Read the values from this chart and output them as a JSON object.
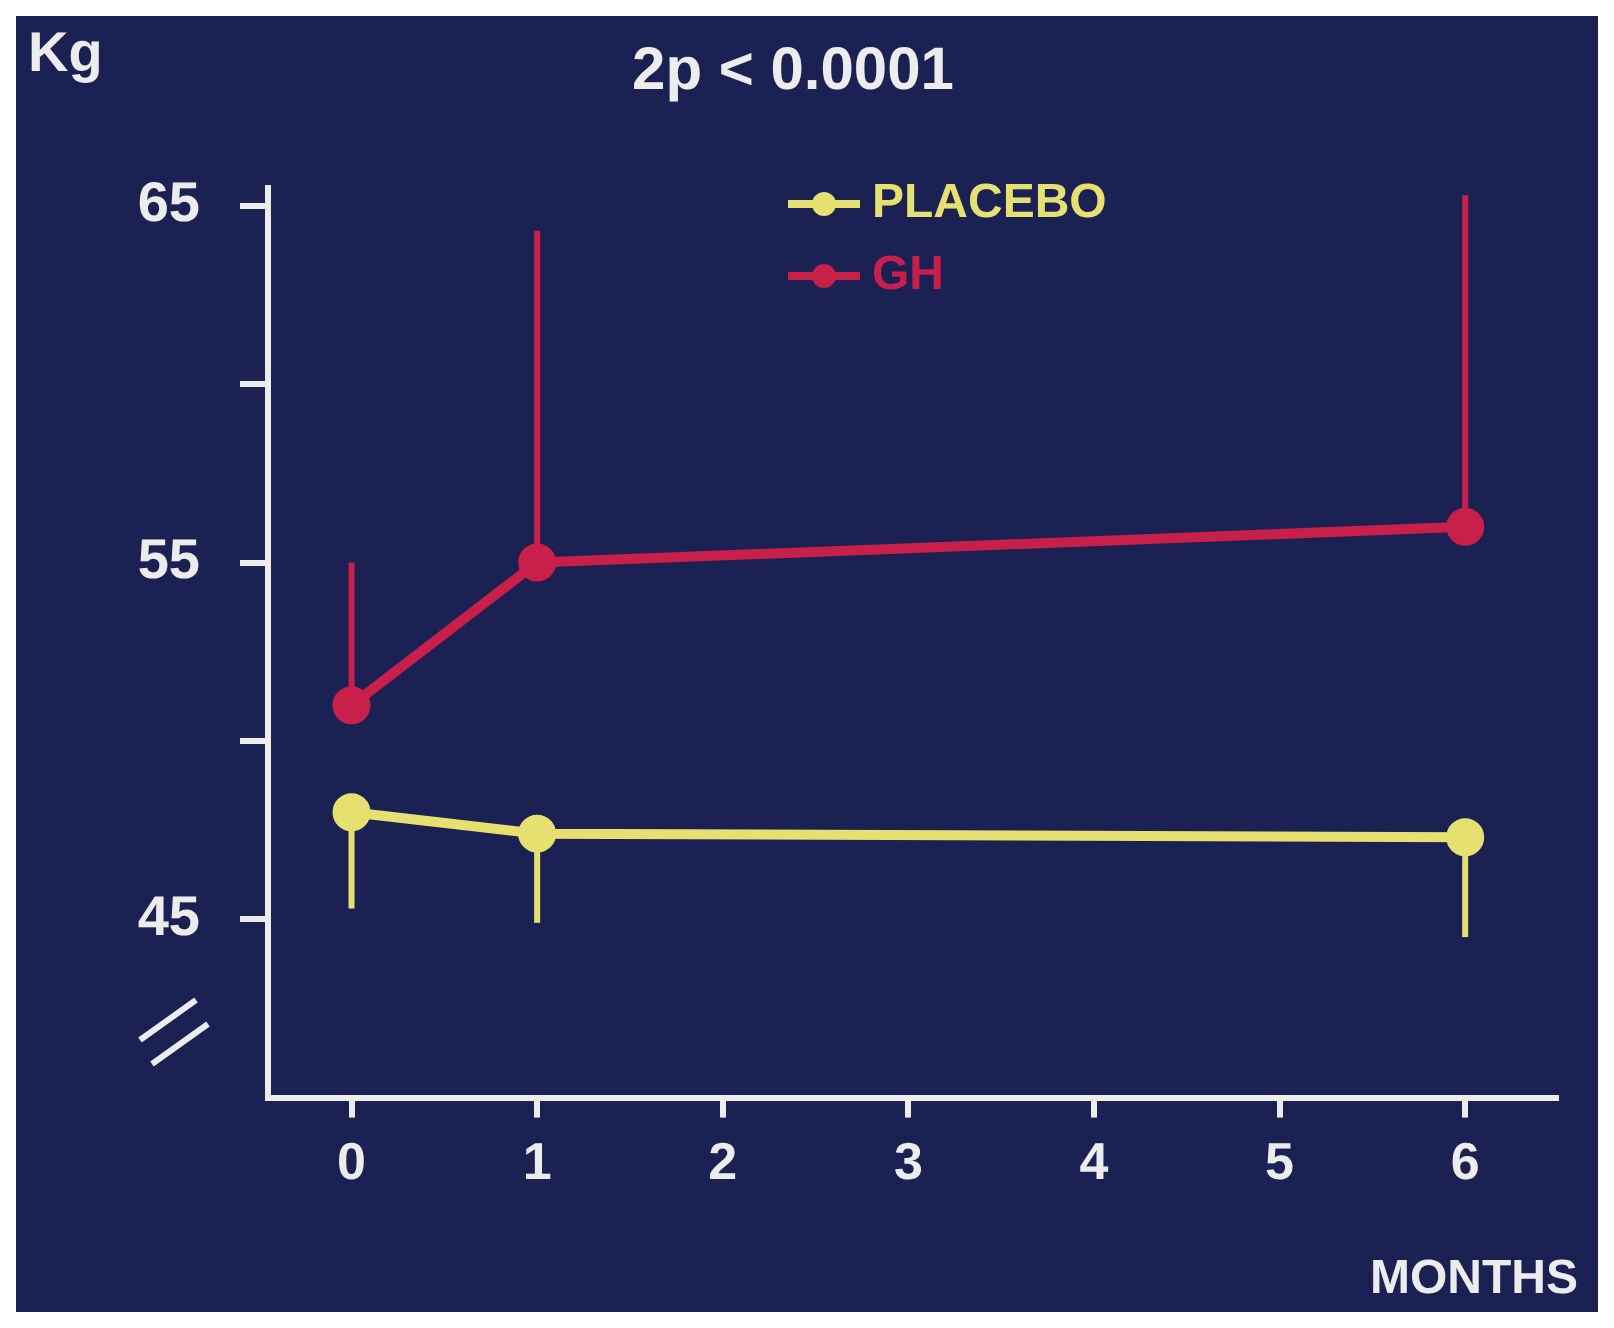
{
  "chart_data": {
    "type": "line",
    "title": "2p < 0.0001",
    "xlabel": "MONTHS",
    "ylabel": "Kg",
    "x": [
      0,
      1,
      6
    ],
    "series": [
      {
        "name": "PLACEBO",
        "color": "#e6e070",
        "values": [
          48,
          47.4,
          47.3
        ],
        "errors": [
          [
            45.3,
            48
          ],
          [
            44.9,
            47.4
          ],
          [
            44.5,
            47.3
          ]
        ]
      },
      {
        "name": "GH",
        "color": "#c8204a",
        "values": [
          51,
          55,
          56
        ],
        "errors": [
          [
            51,
            55
          ],
          [
            55,
            64.3
          ],
          [
            56,
            65.3
          ]
        ]
      }
    ],
    "xlim": [
      -0.45,
      6.5
    ],
    "xticks": [
      0,
      1,
      2,
      3,
      4,
      5,
      6
    ],
    "ylim": [
      40,
      65.5
    ],
    "yticks": [
      45,
      {
        "value": 50,
        "label": null
      },
      55,
      {
        "value": 60,
        "label": null
      },
      65
    ],
    "legend": "top",
    "marker": "circle",
    "line_style": "solid",
    "grid": false
  }
}
